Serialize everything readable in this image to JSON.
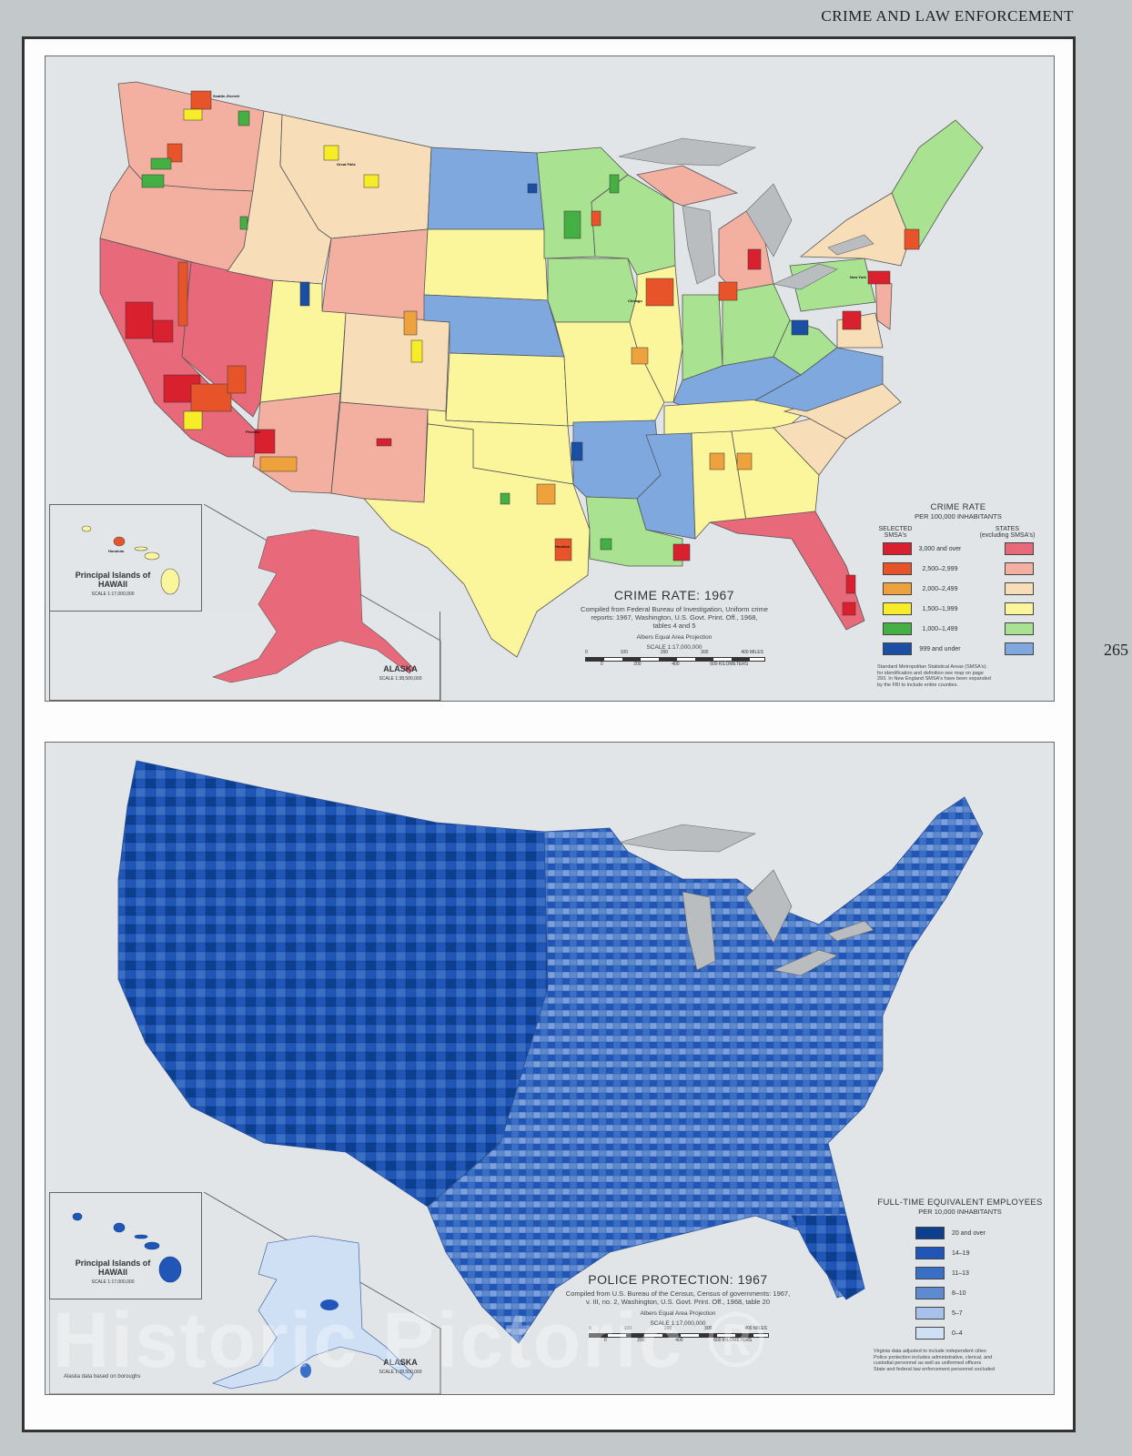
{
  "page": {
    "running_head": "CRIME AND LAW ENFORCEMENT",
    "page_number": "265",
    "watermark": "Historic Pictoric ®"
  },
  "crime_map": {
    "title": "CRIME RATE: 1967",
    "source_line1": "Compiled from Federal Bureau of Investigation, Uniform crime",
    "source_line2": "reports: 1967, Washington, U.S. Govt. Print. Off., 1968,",
    "source_line3": "tables 4 and 5",
    "projection": "Albers Equal Area Projection",
    "scale": "SCALE 1:17,000,000",
    "scale_miles": [
      "0",
      "100",
      "200",
      "300",
      "400 MILES"
    ],
    "scale_km": [
      "0",
      "200",
      "400",
      "600 KILOMETERS"
    ],
    "hawaii_inset": {
      "title_line1": "Principal Islands of",
      "title_line2": "HAWAII",
      "scale": "SCALE 1:17,000,000",
      "city": "Honolulu"
    },
    "alaska_inset": {
      "title": "ALASKA",
      "scale": "SCALE 1:38,500,000"
    },
    "legend": {
      "title": "CRIME RATE",
      "subtitle": "PER 100,000 INHABITANTS",
      "col_smsa_line1": "SELECTED",
      "col_smsa_line2": "SMSA's",
      "col_states_line1": "STATES",
      "col_states_line2": "(excluding SMSA's)",
      "classes": [
        {
          "label": "3,000 and over",
          "smsa_color": "#d8202e",
          "state_color": "#e86a7a"
        },
        {
          "label": "2,500–2,999",
          "smsa_color": "#e8542a",
          "state_color": "#f3b0a0"
        },
        {
          "label": "2,000–2,499",
          "smsa_color": "#eea23e",
          "state_color": "#f8deb8"
        },
        {
          "label": "1,500–1,999",
          "smsa_color": "#f6ec28",
          "state_color": "#fbf59c"
        },
        {
          "label": "1,000–1,499",
          "smsa_color": "#44b043",
          "state_color": "#a9e291"
        },
        {
          "label": "999 and under",
          "smsa_color": "#1b4fa3",
          "state_color": "#7fa9de"
        }
      ],
      "note_line1": "Standard Metropolitan Statistical Areas (SMSA's):",
      "note_line2": "for identification and definition see map on page",
      "note_line3": "293. In New England SMSA's have been expanded",
      "note_line4": "by the FBI to include entire counties."
    },
    "cities": [
      "Seattle–Everett",
      "Tacoma",
      "Spokane",
      "Portland",
      "Salem",
      "Eugene",
      "Great Falls",
      "Billings",
      "Boise City",
      "Reno",
      "Sacramento",
      "Ogden",
      "Salt Lake City",
      "Provo–Orem",
      "San Francisco–Oakland",
      "San Jose",
      "Fresno",
      "Stockton",
      "Salinas–Monterey",
      "Bakersfield",
      "Santa Barbara",
      "Oxnard–Ventura",
      "Los Angeles–Long Beach",
      "Anaheim–Santa Ana–Garden Grove",
      "San Bernardino–Riverside–Ontario",
      "Las Vegas",
      "San Diego",
      "Phoenix",
      "Tucson",
      "Albuquerque",
      "El Paso",
      "Denver",
      "Colorado Springs",
      "Pueblo",
      "Fargo–Moorhead",
      "Sioux Falls",
      "Sioux City",
      "Omaha",
      "Lincoln",
      "Topeka",
      "Wichita",
      "Tulsa",
      "Oklahoma City",
      "Lawton",
      "Amarillo",
      "Lubbock",
      "Wichita Falls",
      "Abilene",
      "Fort Worth",
      "Dallas",
      "Waco",
      "Austin",
      "San Antonio",
      "Houston",
      "Corpus Christi",
      "McAllen–Pharr–Edinburg",
      "Brownsville–Harlingen–San Benito",
      "Galveston–Texas City",
      "Beaumont–Port Arthur–Orange",
      "Lake Charles",
      "Shreveport",
      "Texarkana",
      "Fort Smith",
      "Little Rock–North Little Rock",
      "Monroe",
      "Jackson",
      "New Orleans",
      "Duluth–Superior",
      "Minneapolis–St. Paul",
      "Waterloo",
      "Cedar Rapids",
      "Des Moines",
      "Davenport–Rock Island–Moline",
      "Kansas City",
      "St. Louis",
      "Springfield",
      "Peoria",
      "Champaign–Urbana",
      "Chicago",
      "Madison",
      "Milwaukee",
      "Green Bay",
      "Rockford",
      "Gary–Hammond–E. Chicago",
      "South Bend",
      "Fort Wayne",
      "Indianapolis",
      "Terre Haute",
      "Evansville",
      "Louisville",
      "Lexington",
      "Nashville",
      "Memphis",
      "Chattanooga",
      "Knoxville",
      "Birmingham",
      "Atlanta",
      "Columbus",
      "Augusta",
      "Macon",
      "Albany",
      "Savannah",
      "Mobile",
      "Pensacola",
      "Tallahassee",
      "Jacksonville",
      "Orlando",
      "Tampa–St. Petersburg",
      "West Palm Beach",
      "Ft. Lauderdale–Hollywood",
      "Miami",
      "Bay City",
      "Saginaw",
      "Flint",
      "Lansing",
      "Detroit",
      "Toledo",
      "Cleveland",
      "Columbus",
      "Dayton",
      "Cincinnati",
      "Huntington–Ashland",
      "Charleston",
      "Wheeling",
      "Pittsburgh",
      "Youngstown–Warren",
      "Erie",
      "Buffalo",
      "Rochester",
      "Syracuse",
      "Utica–Rome",
      "Albany–Schenectady–Troy",
      "Binghamton",
      "Scranton",
      "Harrisburg",
      "Reading",
      "Philadelphia",
      "Baltimore",
      "Washington",
      "Richmond",
      "Roanoke",
      "Lynchburg",
      "Newport News–Hampton",
      "Norfolk–Portsmouth",
      "Greensboro–Winston-Salem–High Point",
      "Durham",
      "Raleigh",
      "Charlotte",
      "Asheville",
      "Fayetteville",
      "Wilmington",
      "Columbia",
      "Charleston",
      "Greenville",
      "New York",
      "Newark",
      "Paterson–Clifton–Passaic",
      "Atlantic City",
      "Boston–Lowell–Lawrence",
      "Providence–Pawtucket–Warwick",
      "Manchester"
    ]
  },
  "police_map": {
    "title": "POLICE PROTECTION: 1967",
    "source_line1": "Compiled from U.S. Bureau of the Census, Census of governments: 1967,",
    "source_line2": "v. III, no. 2, Washington, U.S. Govt. Print. Off., 1968, table 20",
    "projection": "Albers Equal Area Projection",
    "scale": "SCALE 1:17,000,000",
    "scale_miles": [
      "0",
      "100",
      "200",
      "300",
      "400 MILES"
    ],
    "scale_km": [
      "0",
      "200",
      "400",
      "600 KILOMETERS"
    ],
    "hawaii_inset": {
      "title_line1": "Principal Islands of",
      "title_line2": "HAWAII",
      "scale": "SCALE 1:17,000,000"
    },
    "alaska_inset": {
      "title": "ALASKA",
      "scale": "SCALE 1:38,500,000",
      "note": "Alaska data based on boroughs"
    },
    "legend": {
      "title": "FULL-TIME EQUIVALENT EMPLOYEES",
      "subtitle": "PER 10,000 INHABITANTS",
      "classes": [
        {
          "label": "20 and over",
          "color": "#0d3f8f"
        },
        {
          "label": "14–19",
          "color": "#1f56b8"
        },
        {
          "label": "11–13",
          "color": "#3a6fc6"
        },
        {
          "label": "8–10",
          "color": "#5e8ad2"
        },
        {
          "label": "5–7",
          "color": "#a6c2ea"
        },
        {
          "label": "0–4",
          "color": "#cfe0f5"
        }
      ],
      "note_line1": "Virginia data adjusted to include independent cities",
      "note_line2": "Police protection includes administrative, clerical, and",
      "note_line3": "custodial personnel as well as uniformed officers",
      "note_line4": "State and federal law enforcement personnel excluded"
    }
  },
  "colors": {
    "page_bg": "#c3c8cb",
    "map_bg": "#e1e5e8",
    "lakes": "#b9bdc0"
  }
}
